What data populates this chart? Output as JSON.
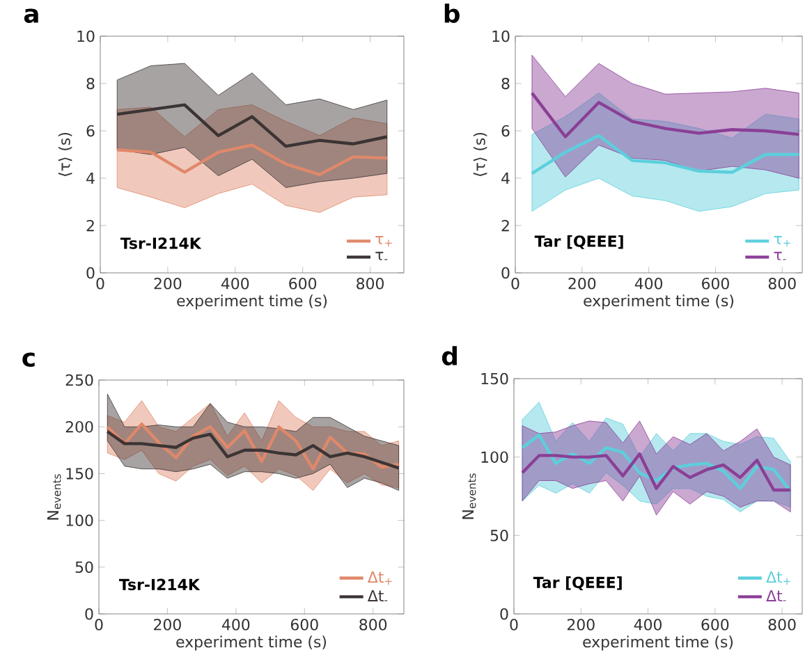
{
  "chart_data": [
    {
      "type": "line",
      "title": "a",
      "xlabel": "experiment time (s)",
      "ylabel": "⟨τ⟩ (s)",
      "annotations": [
        "Tsr-I214K"
      ],
      "legend": "bottom right",
      "grid": false,
      "x": [
        50,
        150,
        250,
        350,
        450,
        550,
        650,
        750,
        850
      ],
      "xlim": [
        0,
        900
      ],
      "xticks": [
        0,
        200,
        400,
        600,
        800
      ],
      "ylim": [
        0,
        10
      ],
      "yticks": [
        0,
        2,
        4,
        6,
        8,
        10
      ],
      "series": [
        {
          "name": "τ$_{+}$",
          "color": "#e0886a",
          "values": [
            5.2,
            5.1,
            4.25,
            5.1,
            5.4,
            4.6,
            4.15,
            4.9,
            4.85
          ],
          "lower": [
            3.6,
            3.2,
            2.75,
            3.35,
            3.75,
            2.85,
            2.55,
            3.2,
            3.3
          ],
          "upper": [
            6.9,
            7.0,
            5.75,
            6.9,
            7.1,
            6.4,
            5.8,
            6.55,
            6.3
          ]
        },
        {
          "name": "τ$_{-}$",
          "color": "#3c3434",
          "values": [
            6.7,
            6.9,
            7.1,
            5.8,
            6.6,
            5.35,
            5.6,
            5.45,
            5.75
          ],
          "lower": [
            5.2,
            5.0,
            5.3,
            4.1,
            4.8,
            3.6,
            3.85,
            4.0,
            4.2
          ],
          "upper": [
            8.15,
            8.75,
            8.85,
            7.5,
            8.45,
            7.1,
            7.35,
            6.9,
            7.3
          ]
        }
      ]
    },
    {
      "type": "line",
      "title": "b",
      "xlabel": "experiment time (s)",
      "ylabel": "⟨τ⟩ (s)",
      "annotations": [
        "Tar [QEEE]"
      ],
      "legend": "bottom right",
      "grid": false,
      "x": [
        50,
        150,
        250,
        350,
        450,
        550,
        650,
        750,
        850
      ],
      "xlim": [
        0,
        860
      ],
      "xticks": [
        0,
        200,
        400,
        600,
        800
      ],
      "ylim": [
        0,
        10
      ],
      "yticks": [
        0,
        2,
        4,
        6,
        8,
        10
      ],
      "series": [
        {
          "name": "τ$_{+}$",
          "color": "#5ccfdc",
          "values": [
            4.2,
            5.1,
            5.8,
            4.75,
            4.65,
            4.3,
            4.25,
            5.0,
            5.0
          ],
          "lower": [
            2.6,
            3.5,
            4.0,
            3.25,
            3.05,
            2.6,
            2.8,
            3.35,
            3.5
          ],
          "upper": [
            5.85,
            6.6,
            7.6,
            6.5,
            6.4,
            6.1,
            5.7,
            6.7,
            6.5
          ]
        },
        {
          "name": "τ$_{-}$",
          "color": "#8a3f96",
          "values": [
            7.6,
            5.75,
            7.2,
            6.4,
            6.1,
            5.9,
            6.05,
            6.0,
            5.85
          ],
          "lower": [
            6.1,
            4.05,
            5.4,
            4.85,
            4.75,
            4.3,
            4.5,
            4.35,
            4.0
          ],
          "upper": [
            9.2,
            7.45,
            8.85,
            8.0,
            7.55,
            7.6,
            7.65,
            7.8,
            7.6
          ]
        }
      ]
    },
    {
      "type": "line",
      "title": "c",
      "xlabel": "experiment time (s)",
      "ylabel": "N$_{events}$",
      "annotations": [
        "Tsr-I214K"
      ],
      "legend": "bottom right",
      "grid": false,
      "x": [
        25,
        75,
        125,
        175,
        225,
        275,
        325,
        375,
        425,
        475,
        525,
        575,
        625,
        675,
        725,
        775,
        825,
        875
      ],
      "xlim": [
        0,
        890
      ],
      "xticks": [
        0,
        200,
        400,
        600,
        800
      ],
      "ylim": [
        0,
        250
      ],
      "yticks": [
        0,
        50,
        100,
        150,
        200,
        250
      ],
      "series": [
        {
          "name": "Δt$_{+}$",
          "color": "#e0886a",
          "values": [
            200,
            182,
            203,
            183,
            167,
            190,
            200,
            178,
            196,
            163,
            200,
            185,
            155,
            189,
            172,
            171,
            157,
            160
          ],
          "lower": [
            172,
            165,
            175,
            150,
            142,
            158,
            165,
            148,
            158,
            140,
            155,
            148,
            132,
            155,
            140,
            150,
            138,
            135
          ],
          "upper": [
            212,
            205,
            228,
            200,
            195,
            210,
            225,
            190,
            215,
            185,
            228,
            210,
            200,
            200,
            195,
            195,
            180,
            185
          ]
        },
        {
          "name": "Δt$_{-}$",
          "color": "#3c3434",
          "values": [
            195,
            182,
            182,
            180,
            178,
            188,
            192,
            168,
            175,
            175,
            172,
            170,
            180,
            168,
            172,
            168,
            162,
            156
          ],
          "lower": [
            185,
            158,
            155,
            155,
            152,
            155,
            160,
            145,
            152,
            152,
            150,
            145,
            150,
            160,
            135,
            145,
            140,
            132
          ],
          "upper": [
            235,
            200,
            200,
            202,
            200,
            200,
            225,
            205,
            200,
            200,
            198,
            195,
            210,
            210,
            200,
            190,
            185,
            180
          ]
        }
      ]
    },
    {
      "type": "line",
      "title": "d",
      "xlabel": "experiment time (s)",
      "ylabel": "N$_{events}$",
      "annotations": [
        "Tar [QEEE]"
      ],
      "legend": "bottom right",
      "grid": false,
      "x": [
        25,
        75,
        125,
        175,
        225,
        275,
        325,
        375,
        425,
        475,
        525,
        575,
        625,
        675,
        725,
        775,
        825
      ],
      "xlim": [
        0,
        860
      ],
      "xticks": [
        0,
        200,
        400,
        600,
        800
      ],
      "ylim": [
        0,
        150
      ],
      "yticks": [
        0,
        50,
        100,
        150
      ],
      "series": [
        {
          "name": "Δt$_{+}$",
          "color": "#5ccfdc",
          "values": [
            106,
            114,
            96,
            102,
            96,
            106,
            103,
            90,
            85,
            93,
            95,
            96,
            91,
            80,
            94,
            92,
            78
          ],
          "lower": [
            72,
            82,
            77,
            83,
            77,
            90,
            82,
            72,
            70,
            80,
            80,
            75,
            73,
            65,
            72,
            72,
            68
          ],
          "upper": [
            124,
            135,
            110,
            122,
            110,
            125,
            121,
            100,
            115,
            104,
            115,
            115,
            110,
            108,
            113,
            112,
            97
          ]
        },
        {
          "name": "Δt$_{-}$",
          "color": "#8a3f96",
          "values": [
            90,
            101,
            101,
            100,
            100,
            101,
            88,
            102,
            80,
            94,
            87,
            92,
            95,
            87,
            98,
            79,
            79
          ],
          "lower": [
            72,
            85,
            85,
            80,
            83,
            85,
            72,
            88,
            63,
            78,
            70,
            78,
            75,
            68,
            72,
            72,
            65
          ],
          "upper": [
            120,
            115,
            116,
            120,
            123,
            122,
            109,
            123,
            102,
            113,
            108,
            115,
            104,
            110,
            118,
            100,
            95
          ]
        }
      ]
    }
  ]
}
